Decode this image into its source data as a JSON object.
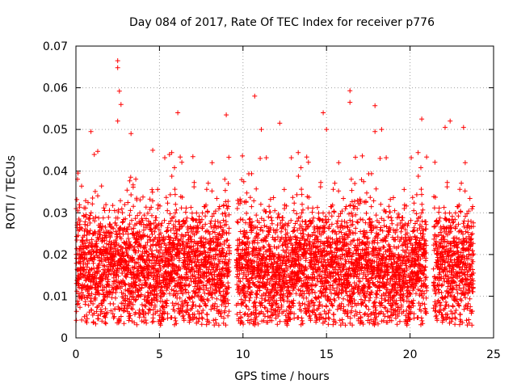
{
  "chart_data": {
    "type": "scatter",
    "title": "Day 084 of 2017, Rate Of TEC Index for receiver p776",
    "xlabel": "GPS time / hours",
    "ylabel": "ROTI / TECUs",
    "xlim": [
      0,
      25
    ],
    "ylim": [
      0,
      0.07
    ],
    "grid": true,
    "marker": "+",
    "color": "#ff0000",
    "x_ticks": [
      "0",
      "5",
      "10",
      "15",
      "20",
      "25"
    ],
    "y_ticks": [
      "0",
      "0.01",
      "0.02",
      "0.03",
      "0.04",
      "0.05",
      "0.06",
      "0.07"
    ],
    "x_tick_values": [
      0,
      5,
      10,
      15,
      20,
      25
    ],
    "y_tick_values": [
      0,
      0.01,
      0.02,
      0.03,
      0.04,
      0.05,
      0.06,
      0.07
    ],
    "series": [
      {
        "name": "ROTI",
        "gaps_hours": [
          [
            9.2,
            9.6
          ],
          [
            21.0,
            21.4
          ],
          [
            23.8,
            25.0
          ]
        ],
        "band_center": 0.017,
        "band_spread": 0.007,
        "x": [
          2.5,
          2.5,
          2.6,
          2.7,
          2.5,
          3.3,
          6.1,
          9.0,
          10.7,
          11.1,
          12.2,
          14.8,
          15.0,
          16.4,
          16.4,
          17.9,
          17.9,
          18.3,
          20.7,
          22.1,
          22.4,
          23.2,
          0.9,
          1.1,
          4.6,
          5.6,
          7.0
        ],
        "y": [
          0.0665,
          0.0648,
          0.0592,
          0.056,
          0.052,
          0.049,
          0.054,
          0.0535,
          0.058,
          0.05,
          0.0515,
          0.054,
          0.05,
          0.0593,
          0.0565,
          0.0557,
          0.0495,
          0.05,
          0.0525,
          0.0505,
          0.052,
          0.0505,
          0.0495,
          0.044,
          0.045,
          0.044,
          0.0435
        ]
      }
    ]
  }
}
